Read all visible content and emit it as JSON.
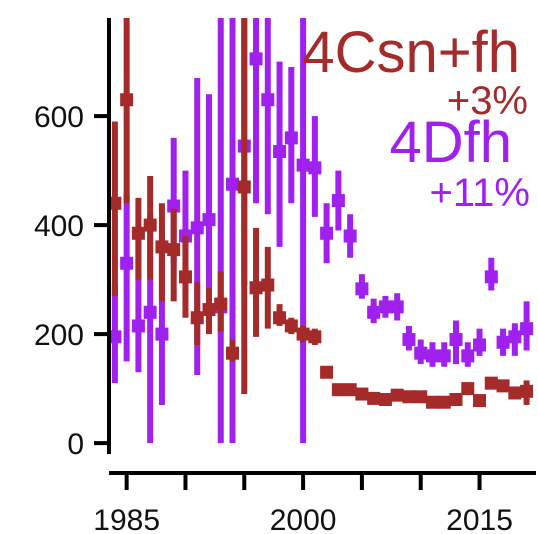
{
  "chart_data": {
    "type": "scatter",
    "title": "",
    "xlabel": "",
    "ylabel": "",
    "xlim": [
      1983.5,
      2019.8
    ],
    "ylim": [
      -20,
      780
    ],
    "x_ticks": [
      1985,
      1990,
      1995,
      2000,
      2005,
      2010,
      2015
    ],
    "x_tick_labels": [
      "1985",
      "",
      "",
      "2000",
      "",
      "",
      "2015"
    ],
    "y_ticks": [
      0,
      200,
      400,
      600
    ],
    "y_tick_labels": [
      "0",
      "200",
      "400",
      "600"
    ],
    "grid": false,
    "legend_position": "top-right",
    "series": [
      {
        "name": "4Dfh",
        "annotation": "+11%",
        "color": "#a020f0",
        "points": [
          {
            "x": 1984,
            "y": 195,
            "lo": 110,
            "hi": 290
          },
          {
            "x": 1985,
            "y": 330,
            "lo": 150,
            "hi": 460
          },
          {
            "x": 1986,
            "y": 215,
            "lo": 130,
            "hi": 390
          },
          {
            "x": 1987,
            "y": 240,
            "lo": 0,
            "hi": 420
          },
          {
            "x": 1988,
            "y": 200,
            "lo": 70,
            "hi": 390
          },
          {
            "x": 1989,
            "y": 435,
            "lo": 330,
            "hi": 560
          },
          {
            "x": 1990,
            "y": 380,
            "lo": 270,
            "hi": 500
          },
          {
            "x": 1991,
            "y": 395,
            "lo": 125,
            "hi": 670
          },
          {
            "x": 1992,
            "y": 410,
            "lo": 210,
            "hi": 640
          },
          {
            "x": 1993,
            "y": 250,
            "lo": 0,
            "hi": 780
          },
          {
            "x": 1994,
            "y": 475,
            "lo": 0,
            "hi": 780
          },
          {
            "x": 1995,
            "y": 545,
            "lo": 290,
            "hi": 780
          },
          {
            "x": 1996,
            "y": 705,
            "lo": 440,
            "hi": 780
          },
          {
            "x": 1997,
            "y": 630,
            "lo": 420,
            "hi": 780
          },
          {
            "x": 1998,
            "y": 535,
            "lo": 360,
            "hi": 700
          },
          {
            "x": 1999,
            "y": 560,
            "lo": 440,
            "hi": 690
          },
          {
            "x": 2000,
            "y": 510,
            "lo": 0,
            "hi": 780
          },
          {
            "x": 2001,
            "y": 505,
            "lo": 415,
            "hi": 600
          },
          {
            "x": 2002,
            "y": 385,
            "lo": 330,
            "hi": 440
          },
          {
            "x": 2003,
            "y": 445,
            "lo": 390,
            "hi": 500
          },
          {
            "x": 2004,
            "y": 380,
            "lo": 340,
            "hi": 420
          },
          {
            "x": 2005,
            "y": 283,
            "lo": 265,
            "hi": 310
          },
          {
            "x": 2006,
            "y": 240,
            "lo": 220,
            "hi": 265
          },
          {
            "x": 2007,
            "y": 250,
            "lo": 230,
            "hi": 270
          },
          {
            "x": 2008,
            "y": 250,
            "lo": 225,
            "hi": 275
          },
          {
            "x": 2009,
            "y": 190,
            "lo": 170,
            "hi": 215
          },
          {
            "x": 2010,
            "y": 165,
            "lo": 145,
            "hi": 190
          },
          {
            "x": 2011,
            "y": 160,
            "lo": 140,
            "hi": 185
          },
          {
            "x": 2012,
            "y": 160,
            "lo": 140,
            "hi": 185
          },
          {
            "x": 2013,
            "y": 190,
            "lo": 145,
            "hi": 225
          },
          {
            "x": 2014,
            "y": 160,
            "lo": 140,
            "hi": 185
          },
          {
            "x": 2015,
            "y": 180,
            "lo": 160,
            "hi": 210
          },
          {
            "x": 2016,
            "y": 305,
            "lo": 280,
            "hi": 340
          },
          {
            "x": 2017,
            "y": 185,
            "lo": 160,
            "hi": 210
          },
          {
            "x": 2018,
            "y": 195,
            "lo": 160,
            "hi": 220
          },
          {
            "x": 2019,
            "y": 210,
            "lo": 170,
            "hi": 260
          }
        ]
      },
      {
        "name": "4Csn+fh",
        "annotation": "+3%",
        "color": "#a52a2a",
        "points": [
          {
            "x": 1984,
            "y": 440,
            "lo": 270,
            "hi": 590
          },
          {
            "x": 1985,
            "y": 630,
            "lo": 440,
            "hi": 780
          },
          {
            "x": 1986,
            "y": 385,
            "lo": 300,
            "hi": 450
          },
          {
            "x": 1987,
            "y": 400,
            "lo": 300,
            "hi": 490
          },
          {
            "x": 1988,
            "y": 360,
            "lo": 260,
            "hi": 440
          },
          {
            "x": 1989,
            "y": 355,
            "lo": 260,
            "hi": 430
          },
          {
            "x": 1990,
            "y": 305,
            "lo": 230,
            "hi": 380
          },
          {
            "x": 1991,
            "y": 230,
            "lo": 180,
            "hi": 295
          },
          {
            "x": 1992,
            "y": 245,
            "lo": 200,
            "hi": 285
          },
          {
            "x": 1993,
            "y": 255,
            "lo": 205,
            "hi": 315
          },
          {
            "x": 1994,
            "y": 165,
            "lo": 150,
            "hi": 190
          },
          {
            "x": 1995,
            "y": 470,
            "lo": 90,
            "hi": 780
          },
          {
            "x": 1996,
            "y": 285,
            "lo": 195,
            "hi": 395
          },
          {
            "x": 1997,
            "y": 290,
            "lo": 210,
            "hi": 360
          },
          {
            "x": 1998,
            "y": 230,
            "lo": 215,
            "hi": 255
          },
          {
            "x": 1999,
            "y": 215,
            "lo": 200,
            "hi": 230
          },
          {
            "x": 2000,
            "y": 200,
            "lo": 185,
            "hi": 215
          },
          {
            "x": 2001,
            "y": 195,
            "lo": 180,
            "hi": 210
          },
          {
            "x": 2002,
            "y": 130,
            "lo": 120,
            "hi": 140
          },
          {
            "x": 2003,
            "y": 98,
            "lo": 88,
            "hi": 108
          },
          {
            "x": 2004,
            "y": 98,
            "lo": 90,
            "hi": 106
          },
          {
            "x": 2005,
            "y": 90,
            "lo": 82,
            "hi": 98
          },
          {
            "x": 2006,
            "y": 82,
            "lo": 75,
            "hi": 90
          },
          {
            "x": 2007,
            "y": 80,
            "lo": 73,
            "hi": 88
          },
          {
            "x": 2008,
            "y": 88,
            "lo": 80,
            "hi": 96
          },
          {
            "x": 2009,
            "y": 85,
            "lo": 78,
            "hi": 92
          },
          {
            "x": 2010,
            "y": 85,
            "lo": 78,
            "hi": 92
          },
          {
            "x": 2011,
            "y": 75,
            "lo": 68,
            "hi": 82
          },
          {
            "x": 2012,
            "y": 75,
            "lo": 68,
            "hi": 82
          },
          {
            "x": 2013,
            "y": 80,
            "lo": 73,
            "hi": 88
          },
          {
            "x": 2014,
            "y": 100,
            "lo": 90,
            "hi": 110
          },
          {
            "x": 2015,
            "y": 78,
            "lo": 70,
            "hi": 86
          },
          {
            "x": 2016,
            "y": 110,
            "lo": 102,
            "hi": 120
          },
          {
            "x": 2017,
            "y": 105,
            "lo": 97,
            "hi": 114
          },
          {
            "x": 2018,
            "y": 92,
            "lo": 84,
            "hi": 100
          },
          {
            "x": 2019,
            "y": 95,
            "lo": 70,
            "hi": 115
          }
        ]
      }
    ]
  }
}
